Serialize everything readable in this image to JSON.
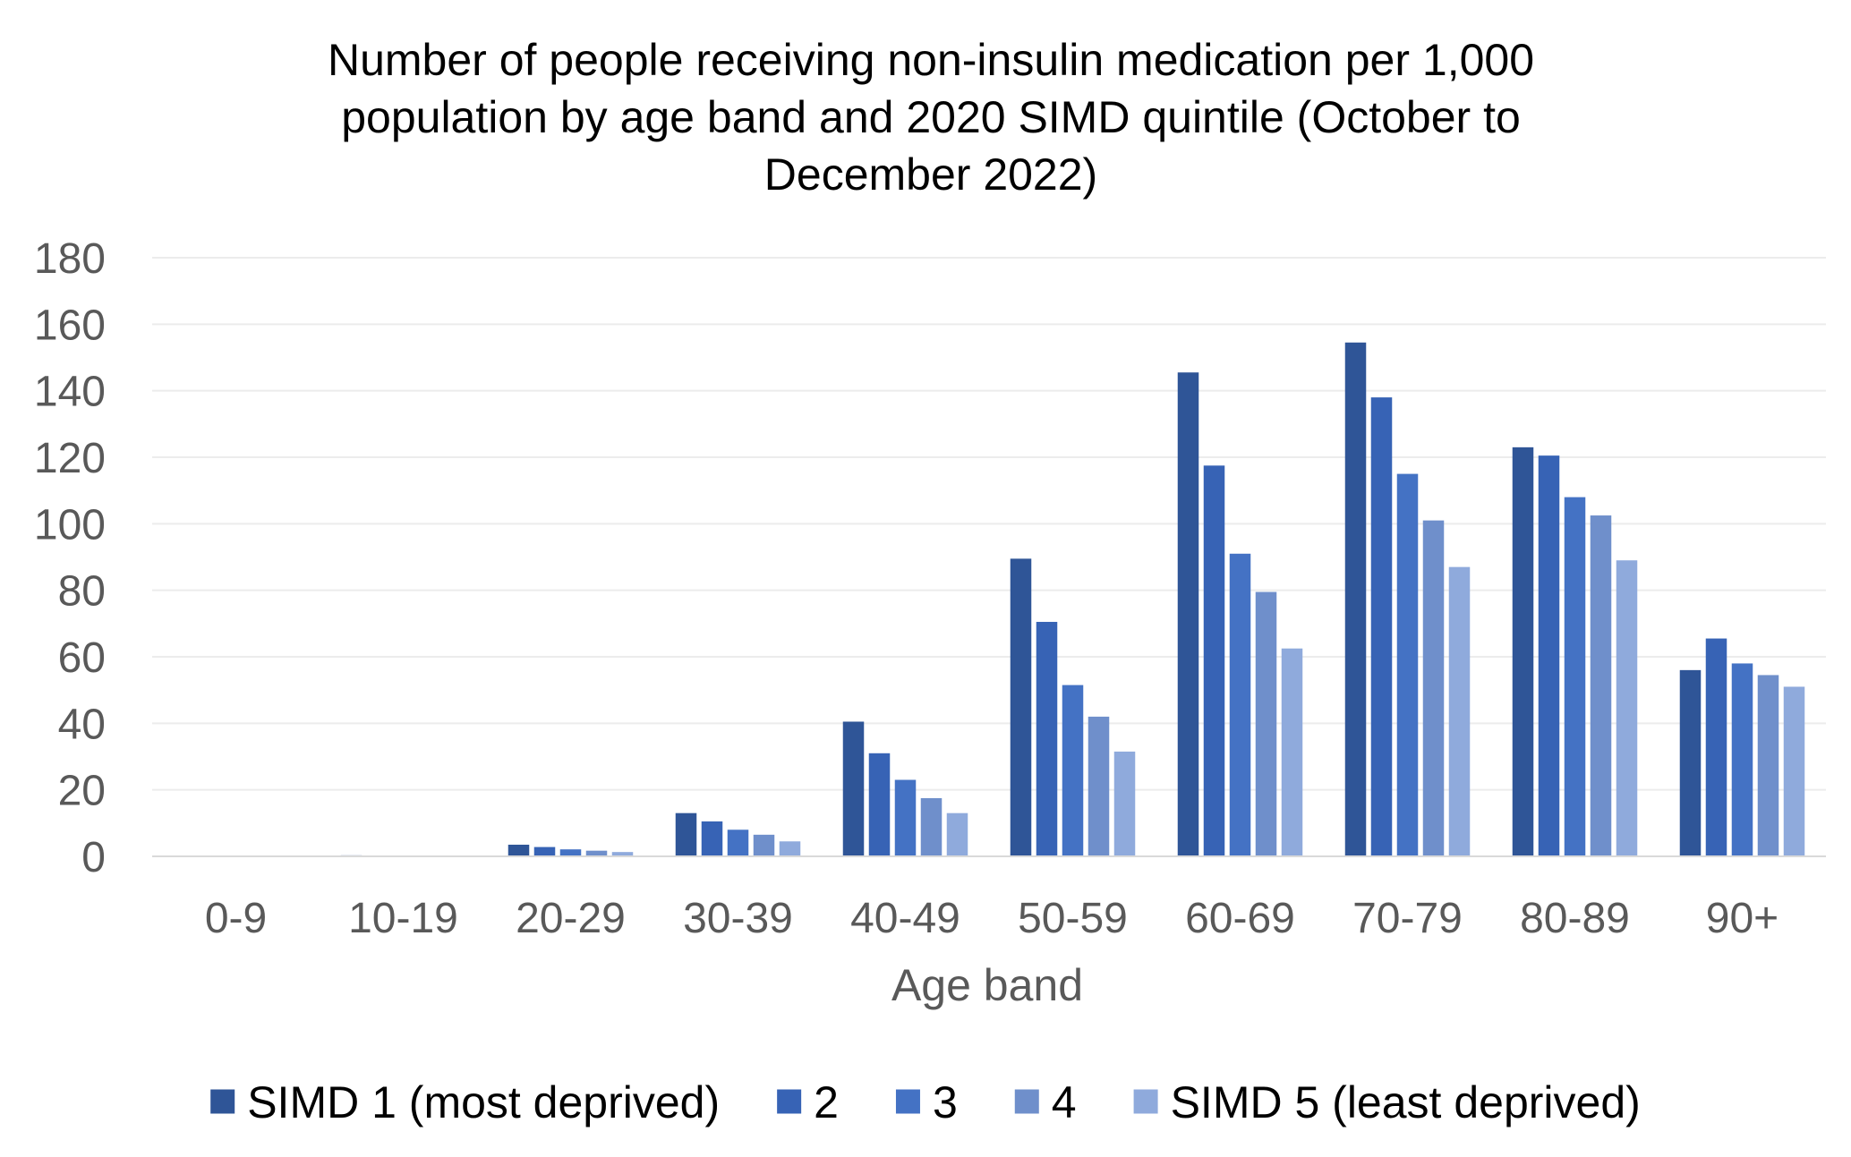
{
  "chart_data": {
    "type": "bar",
    "title_lines": [
      "Number of people receiving non-insulin medication per 1,000",
      "population by age band and 2020 SIMD quintile (October to",
      "December 2022)"
    ],
    "xlabel": "Age band",
    "ylabel": "",
    "ylim": [
      0,
      180
    ],
    "yticks": [
      "0",
      "20",
      "40",
      "60",
      "80",
      "100",
      "120",
      "140",
      "160",
      "180"
    ],
    "grid": true,
    "legend_position": "bottom",
    "categories": [
      "0-9",
      "10-19",
      "20-29",
      "30-39",
      "40-49",
      "50-59",
      "60-69",
      "70-79",
      "80-89",
      "90+"
    ],
    "series": [
      {
        "name": "SIMD 1 (most deprived)",
        "color": "#2F5597",
        "values": [
          0,
          0.3,
          3.5,
          13,
          40.5,
          89.5,
          145.5,
          154.5,
          123,
          56
        ]
      },
      {
        "name": "2",
        "color": "#3763B5",
        "values": [
          0,
          0.2,
          2.8,
          10.5,
          31,
          70.5,
          117.5,
          138,
          120.5,
          65.5
        ]
      },
      {
        "name": "3",
        "color": "#4472C4",
        "values": [
          0,
          0.1,
          2.1,
          8,
          23,
          51.5,
          91,
          115,
          108,
          58
        ]
      },
      {
        "name": "4",
        "color": "#6F8FCB",
        "values": [
          0,
          0.1,
          1.7,
          6.5,
          17.5,
          42,
          79.5,
          101,
          102.5,
          54.5
        ]
      },
      {
        "name": "SIMD 5 (least deprived)",
        "color": "#8FAADC",
        "values": [
          0,
          0.1,
          1.3,
          4.5,
          13,
          31.5,
          62.5,
          87,
          89,
          51
        ]
      }
    ]
  }
}
